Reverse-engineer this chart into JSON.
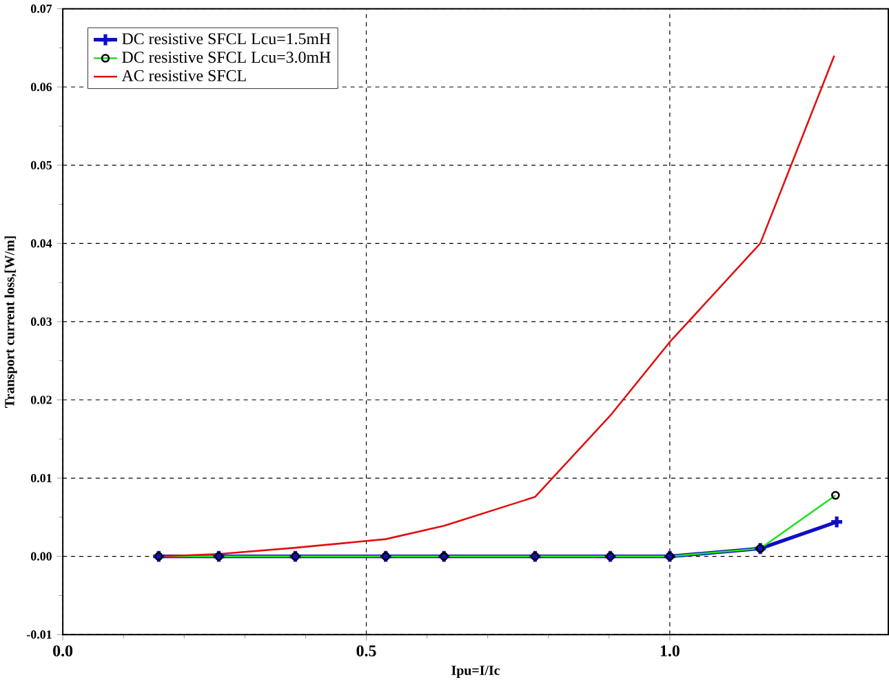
{
  "chart_data": {
    "type": "line",
    "xlabel": "Ipu=I/Ic",
    "ylabel": "Transport current loss,[W/m]",
    "xlim": [
      0,
      1.36
    ],
    "xticks": [
      {
        "value": 0,
        "label": "0.0"
      },
      0.5,
      {
        "value": 1,
        "label": "1.0"
      }
    ],
    "ylim": [
      -0.01,
      0.07
    ],
    "yticks": [
      -0.01,
      {
        "value": 0,
        "label": "0.00"
      },
      0.01,
      0.02,
      0.03,
      0.04,
      0.05,
      0.06,
      0.07
    ],
    "grid": true,
    "legend": "top left",
    "line_style": "solid",
    "series": [
      {
        "name": "DC resistive SFCL Lcu=1.5mH",
        "color": "#1010c0",
        "marker": "cross",
        "x": [
          0.158,
          0.257,
          0.383,
          0.532,
          0.628,
          0.778,
          0.902,
          1.0,
          1.149,
          1.275
        ],
        "values": [
          0,
          0,
          0,
          0,
          0,
          0,
          0,
          0,
          0.001,
          0.0044
        ]
      },
      {
        "name": "DC resistive SFCL Lcu=3.0mH",
        "color": "#20e020",
        "marker": "circle",
        "x": [
          0.158,
          0.257,
          0.383,
          0.532,
          0.628,
          0.778,
          0.902,
          1.0,
          1.149,
          1.273
        ],
        "values": [
          0,
          0,
          0,
          0,
          0,
          0,
          0,
          0,
          0.001,
          0.0078
        ]
      },
      {
        "name": "AC resistive SFCL",
        "color": "#e01010",
        "marker": "none",
        "x": [
          0.158,
          0.257,
          0.383,
          0.532,
          0.628,
          0.778,
          0.902,
          1.0,
          1.149,
          1.271
        ],
        "values": [
          0,
          0.0003,
          0.0011,
          0.0022,
          0.0039,
          0.0076,
          0.018,
          0.0274,
          0.04,
          0.064
        ]
      }
    ]
  }
}
